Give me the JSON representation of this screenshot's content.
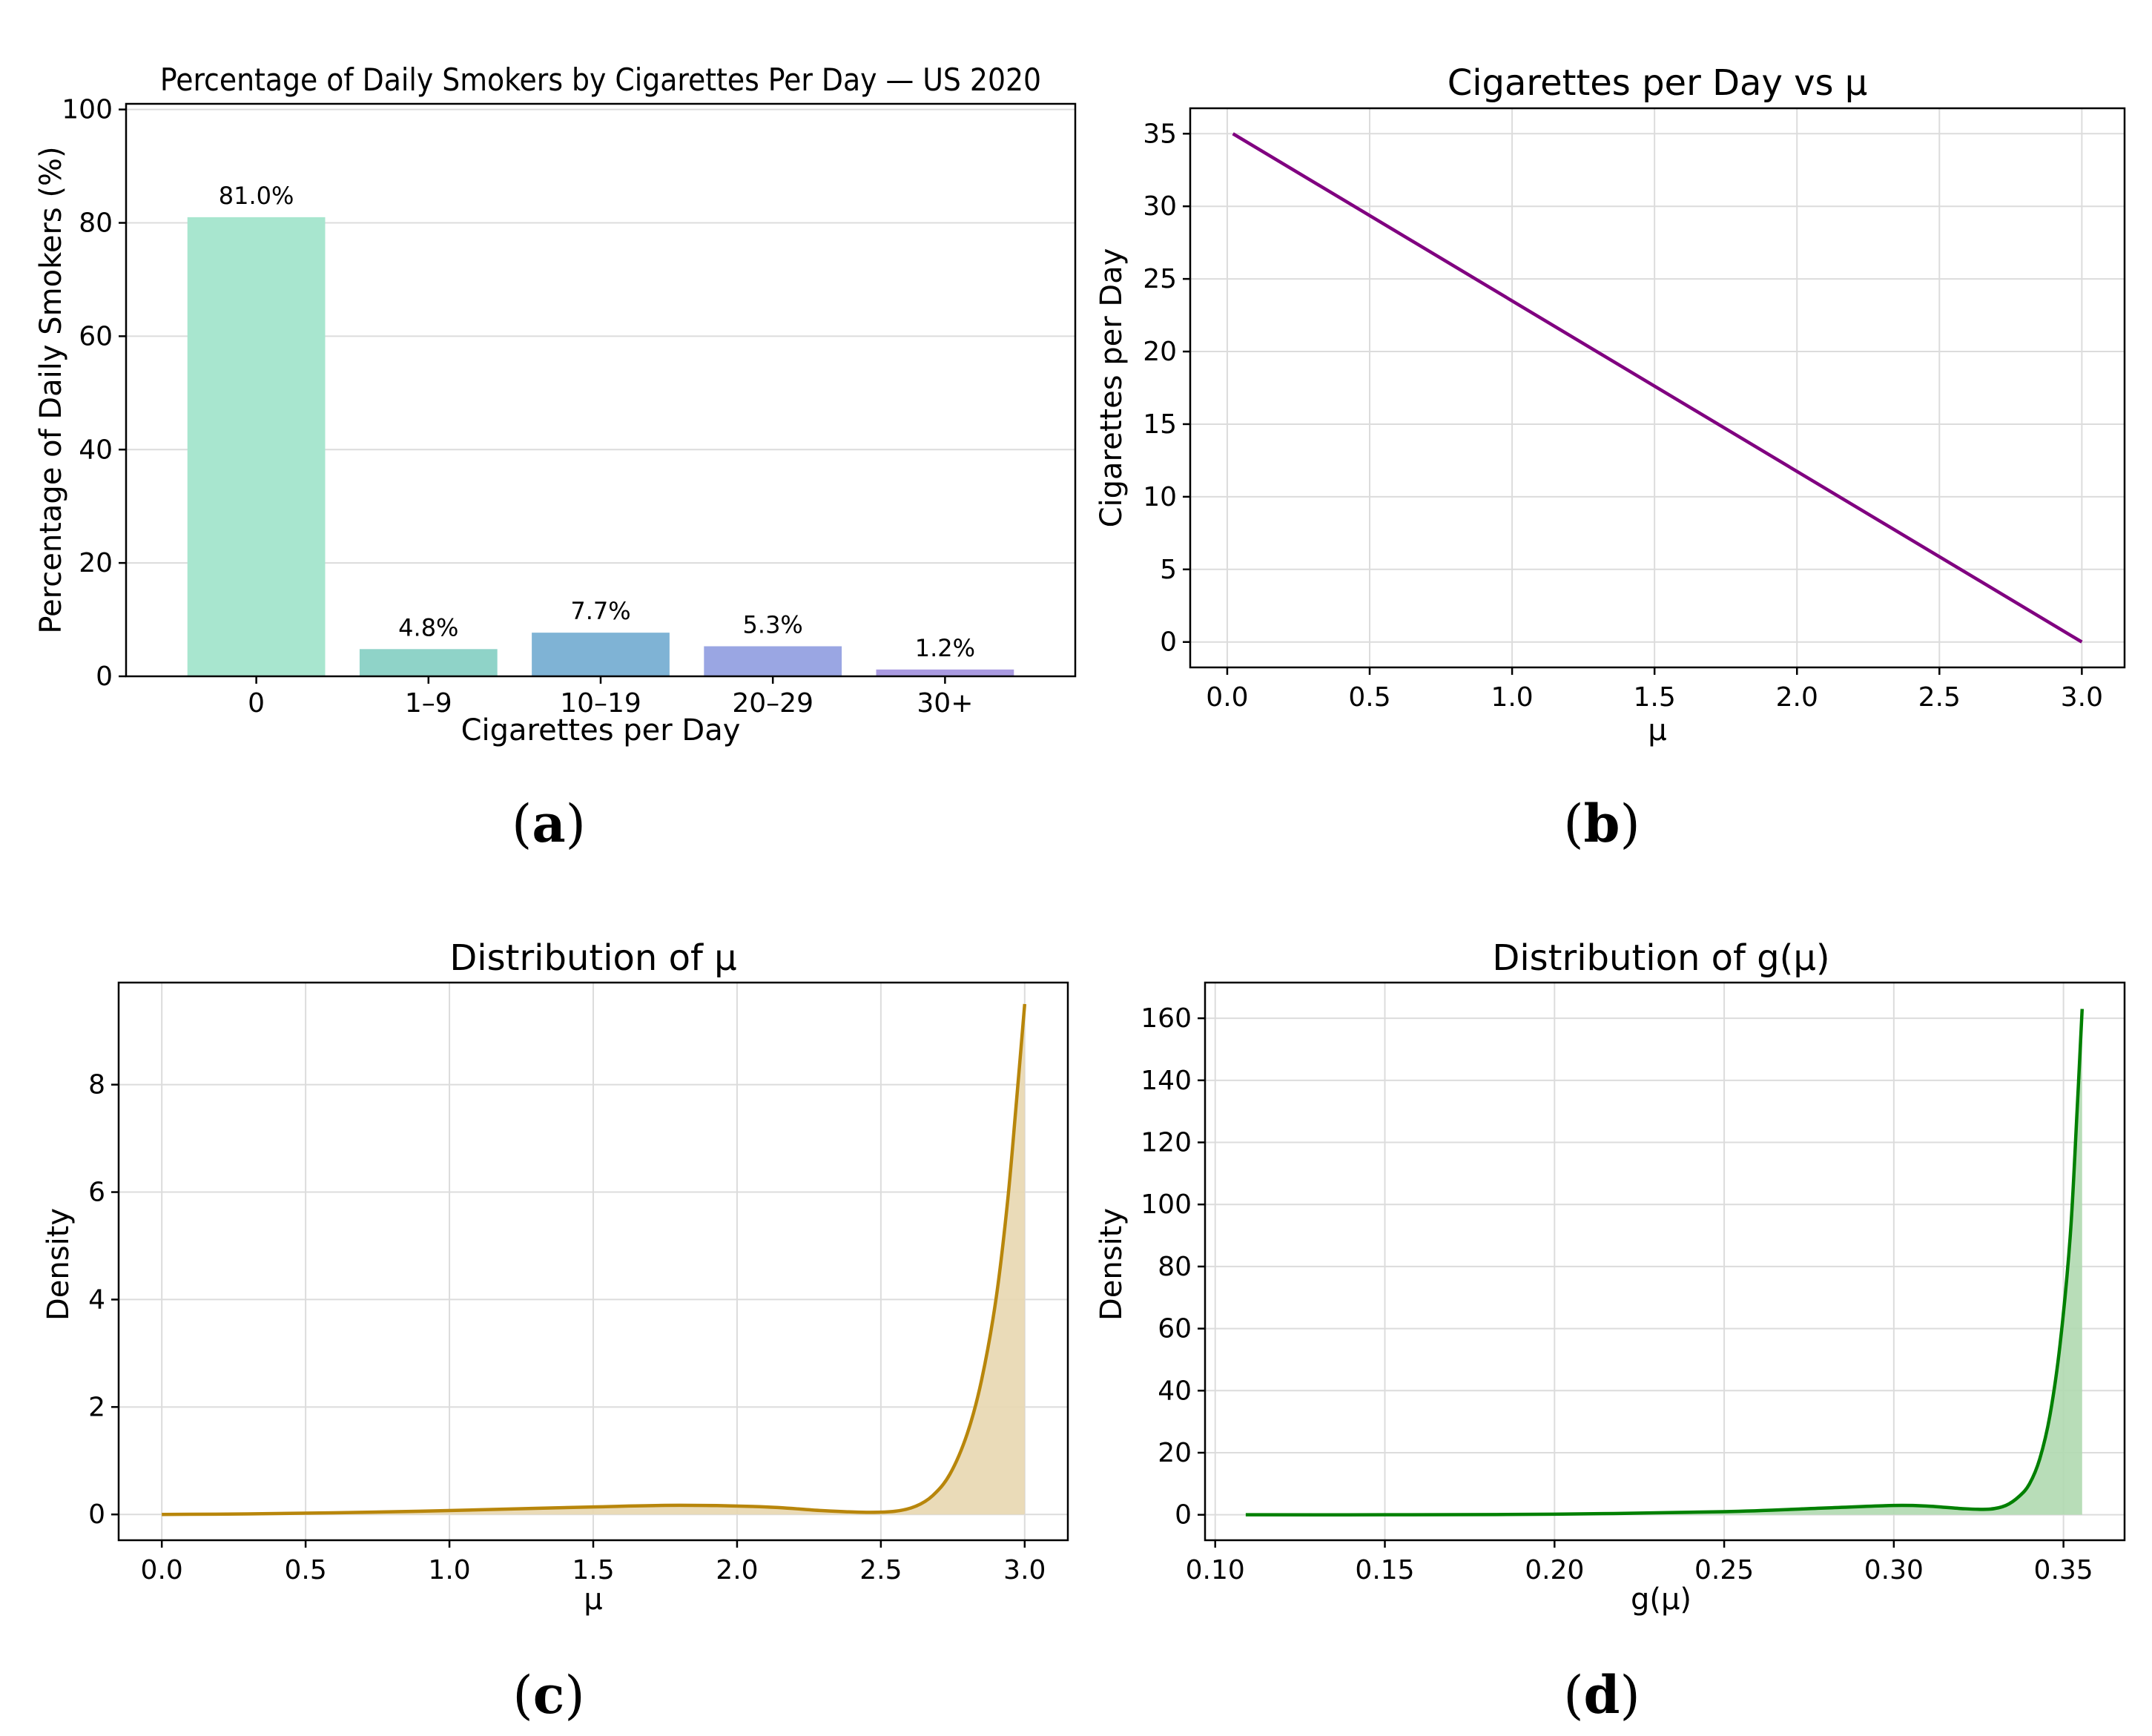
{
  "chart_data": [
    {
      "id": "a",
      "type": "bar",
      "panel_label": "a",
      "title": "Percentage of Daily Smokers by Cigarettes Per Day — US 2020",
      "xlabel": "Cigarettes per Day",
      "ylabel": "Percentage of Daily Smokers (%)",
      "categories": [
        "0",
        "1–9",
        "10–19",
        "20–29",
        "30+"
      ],
      "values": [
        81.0,
        4.8,
        7.7,
        5.3,
        1.2
      ],
      "value_labels": [
        "81.0%",
        "4.8%",
        "7.7%",
        "5.3%",
        "1.2%"
      ],
      "colors": [
        "#a8e6cf",
        "#8fd3c8",
        "#7fb3d5",
        "#9aa6e3",
        "#a99ae0"
      ],
      "ylim": [
        0,
        101
      ],
      "yticks": [
        0,
        20,
        40,
        60,
        80,
        100
      ],
      "grid": true
    },
    {
      "id": "b",
      "type": "line",
      "panel_label": "b",
      "title": "Cigarettes per Day vs μ",
      "xlabel": "μ",
      "ylabel": "Cigarettes per Day",
      "series": [
        {
          "x": [
            0.02,
            3.0
          ],
          "y": [
            35.0,
            0.0
          ],
          "color": "#800080"
        }
      ],
      "xlim": [
        -0.13,
        3.15
      ],
      "ylim": [
        -1.75,
        36.75
      ],
      "xticks": [
        0.0,
        0.5,
        1.0,
        1.5,
        2.0,
        2.5,
        3.0
      ],
      "xtick_labels": [
        "0.0",
        "0.5",
        "1.0",
        "1.5",
        "2.0",
        "2.5",
        "3.0"
      ],
      "yticks": [
        0,
        5,
        10,
        15,
        20,
        25,
        30,
        35
      ],
      "grid": true
    },
    {
      "id": "c",
      "type": "area",
      "panel_label": "c",
      "title": "Distribution of μ",
      "xlabel": "μ",
      "ylabel": "Density",
      "series": [
        {
          "x": [
            0.0,
            0.3,
            0.6,
            0.9,
            1.2,
            1.5,
            1.8,
            2.1,
            2.3,
            2.45,
            2.55,
            2.62,
            2.68,
            2.74,
            2.8,
            2.85,
            2.9,
            2.94,
            2.97,
            3.0
          ],
          "y": [
            0.0,
            0.01,
            0.03,
            0.06,
            0.1,
            0.14,
            0.17,
            0.14,
            0.07,
            0.04,
            0.06,
            0.15,
            0.35,
            0.75,
            1.5,
            2.5,
            4.0,
            5.8,
            7.6,
            9.5
          ],
          "color": "#b8860b",
          "fill": "#e8d7b0"
        }
      ],
      "xlim": [
        -0.15,
        3.15
      ],
      "ylim": [
        -0.48,
        9.9
      ],
      "xticks": [
        0.0,
        0.5,
        1.0,
        1.5,
        2.0,
        2.5,
        3.0
      ],
      "xtick_labels": [
        "0.0",
        "0.5",
        "1.0",
        "1.5",
        "2.0",
        "2.5",
        "3.0"
      ],
      "yticks": [
        0,
        2,
        4,
        6,
        8
      ],
      "grid": true
    },
    {
      "id": "d",
      "type": "area",
      "panel_label": "d",
      "title": "Distribution of g(μ)",
      "xlabel": "g(μ)",
      "ylabel": "Density",
      "series": [
        {
          "x": [
            0.109,
            0.15,
            0.2,
            0.25,
            0.28,
            0.3,
            0.31,
            0.32,
            0.328,
            0.333,
            0.337,
            0.34,
            0.343,
            0.346,
            0.349,
            0.352,
            0.354,
            0.3555
          ],
          "y": [
            0.0,
            0.0,
            0.2,
            1.0,
            2.2,
            3.0,
            2.8,
            2.0,
            1.8,
            3.0,
            6.0,
            10.0,
            18.0,
            32.0,
            55.0,
            90.0,
            130.0,
            163.0
          ],
          "color": "#008000",
          "fill": "#b0d9b0"
        }
      ],
      "xlim": [
        0.097,
        0.368
      ],
      "ylim": [
        -8.2,
        171.5
      ],
      "xticks": [
        0.1,
        0.15,
        0.2,
        0.25,
        0.3,
        0.35
      ],
      "xtick_labels": [
        "0.10",
        "0.15",
        "0.20",
        "0.25",
        "0.30",
        "0.35"
      ],
      "yticks": [
        0,
        20,
        40,
        60,
        80,
        100,
        120,
        140,
        160
      ],
      "grid": true
    }
  ]
}
